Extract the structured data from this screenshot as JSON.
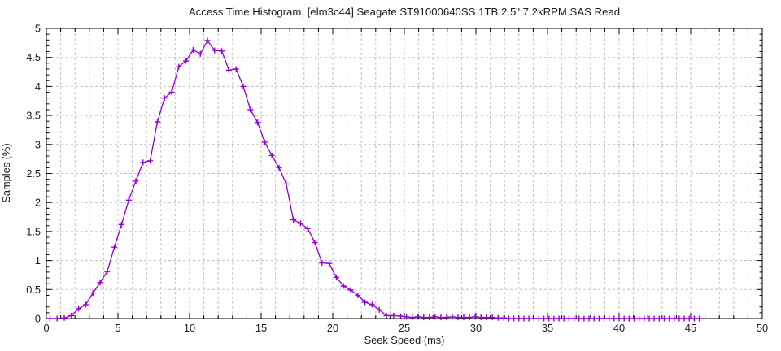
{
  "chart_data": {
    "type": "line",
    "title": "Access Time Histogram, [elm3c44] Seagate ST91000640SS 1TB 2.5\" 7.2kRPM SAS Read",
    "xlabel": "Seek Speed (ms)",
    "ylabel": "Samples (%)",
    "xlim": [
      0,
      50
    ],
    "ylim": [
      0,
      5
    ],
    "x_major_tick_values": [
      0,
      5,
      10,
      15,
      20,
      25,
      30,
      35,
      40,
      45,
      50
    ],
    "x_tick_labels": [
      "0",
      "5",
      "10",
      "15",
      "20",
      "25",
      "30",
      "35",
      "40",
      "45",
      "50"
    ],
    "x_minor_step": 1,
    "y_major_tick_values": [
      0,
      0.5,
      1,
      1.5,
      2,
      2.5,
      3,
      3.5,
      4,
      4.5,
      5
    ],
    "y_tick_labels": [
      "0",
      "0.5",
      "1",
      "1.5",
      "2",
      "2.5",
      "3",
      "3.5",
      "4",
      "4.5",
      "5"
    ],
    "y_minor_step": 0.1,
    "grid": {
      "vertical_step_ms": 1,
      "horizontal_step": 0.5,
      "style": "dashed",
      "color": "#bfbfbf"
    },
    "legend": "none",
    "border_color": "#000000",
    "text_color": "#1a1a1a",
    "series": [
      {
        "name": "access-time-samples",
        "color": "#9400d3",
        "marker": "plus",
        "points": [
          [
            0.25,
            0
          ],
          [
            0.75,
            0
          ],
          [
            1.25,
            0.01
          ],
          [
            1.75,
            0.05
          ],
          [
            2.25,
            0.17
          ],
          [
            2.75,
            0.24
          ],
          [
            3.25,
            0.44
          ],
          [
            3.75,
            0.62
          ],
          [
            4.25,
            0.81
          ],
          [
            4.75,
            1.23
          ],
          [
            5.25,
            1.62
          ],
          [
            5.75,
            2.04
          ],
          [
            6.25,
            2.37
          ],
          [
            6.75,
            2.69
          ],
          [
            7.25,
            2.72
          ],
          [
            7.75,
            3.39
          ],
          [
            8.25,
            3.8
          ],
          [
            8.75,
            3.9
          ],
          [
            9.25,
            4.34
          ],
          [
            9.75,
            4.44
          ],
          [
            10.25,
            4.63
          ],
          [
            10.75,
            4.56
          ],
          [
            11.25,
            4.79
          ],
          [
            11.75,
            4.62
          ],
          [
            12.25,
            4.61
          ],
          [
            12.75,
            4.28
          ],
          [
            13.25,
            4.3
          ],
          [
            13.75,
            4.0
          ],
          [
            14.25,
            3.6
          ],
          [
            14.75,
            3.38
          ],
          [
            15.25,
            3.04
          ],
          [
            15.75,
            2.81
          ],
          [
            16.25,
            2.6
          ],
          [
            16.75,
            2.32
          ],
          [
            17.25,
            1.7
          ],
          [
            17.75,
            1.64
          ],
          [
            18.25,
            1.55
          ],
          [
            18.75,
            1.31
          ],
          [
            19.25,
            0.96
          ],
          [
            19.75,
            0.95
          ],
          [
            20.25,
            0.71
          ],
          [
            20.75,
            0.56
          ],
          [
            21.25,
            0.49
          ],
          [
            21.75,
            0.4
          ],
          [
            22.25,
            0.28
          ],
          [
            22.75,
            0.24
          ],
          [
            23.25,
            0.15
          ],
          [
            23.75,
            0.05
          ],
          [
            24.25,
            0.05
          ],
          [
            24.75,
            0.04
          ],
          [
            25.15,
            0.03
          ],
          [
            25.55,
            0.02
          ],
          [
            25.95,
            0.03
          ],
          [
            26.35,
            0.02
          ],
          [
            26.75,
            0.02
          ],
          [
            27.15,
            0.03
          ],
          [
            27.55,
            0.02
          ],
          [
            27.95,
            0.02
          ],
          [
            28.35,
            0.03
          ],
          [
            28.75,
            0.02
          ],
          [
            29.15,
            0.02
          ],
          [
            29.55,
            0.02
          ],
          [
            29.95,
            0.03
          ],
          [
            30.35,
            0.02
          ],
          [
            30.75,
            0.02
          ],
          [
            31.15,
            0.02
          ],
          [
            31.55,
            0.01
          ],
          [
            31.95,
            0.01
          ],
          [
            32.3,
            0
          ],
          [
            32.65,
            0
          ],
          [
            33,
            0
          ],
          [
            33.35,
            0
          ],
          [
            33.7,
            0
          ],
          [
            34.05,
            0
          ],
          [
            34.4,
            0
          ],
          [
            34.75,
            0
          ],
          [
            35.1,
            0
          ],
          [
            35.45,
            0
          ],
          [
            35.8,
            0
          ],
          [
            36.15,
            0
          ],
          [
            36.5,
            0
          ],
          [
            36.85,
            0
          ],
          [
            37.2,
            0
          ],
          [
            37.55,
            0
          ],
          [
            37.9,
            0
          ],
          [
            38.25,
            0
          ],
          [
            38.6,
            0
          ],
          [
            38.95,
            0
          ],
          [
            39.3,
            0
          ],
          [
            39.65,
            0
          ],
          [
            40,
            0
          ],
          [
            40.35,
            0
          ],
          [
            40.7,
            0
          ],
          [
            41.05,
            0
          ],
          [
            41.4,
            0
          ],
          [
            41.75,
            0
          ],
          [
            42.1,
            0
          ],
          [
            42.45,
            0
          ],
          [
            42.8,
            0
          ],
          [
            43.15,
            0
          ],
          [
            43.5,
            0
          ],
          [
            43.85,
            0
          ],
          [
            44.2,
            0
          ],
          [
            44.55,
            0
          ],
          [
            44.9,
            0
          ],
          [
            45.25,
            0
          ],
          [
            45.6,
            0
          ]
        ]
      }
    ]
  }
}
